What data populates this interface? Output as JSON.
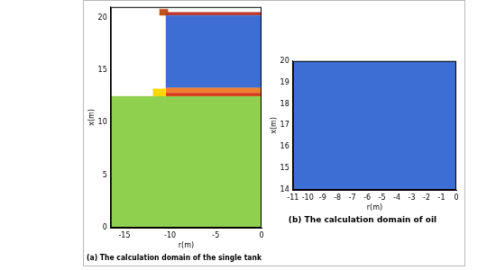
{
  "chart_data": [
    {
      "type": "area",
      "title": "(a) The calculation domain of the single tank",
      "x_label": "r(m)",
      "y_label": "x(m)",
      "xlim": [
        -16.5,
        0
      ],
      "xticks": [
        -15,
        -10,
        -5,
        0
      ],
      "ylim": [
        0,
        21
      ],
      "yticks": [
        0,
        5,
        10,
        15,
        20
      ],
      "grid": false,
      "series": [
        {
          "color": "#8fd14f",
          "x": [
            -16.5,
            0
          ],
          "values": [
            12.5,
            12.5
          ],
          "base": [
            0,
            0
          ]
        },
        {
          "color": "#ffd800",
          "x": [
            -11.9,
            -10.5
          ],
          "values": [
            13.2,
            13.2
          ],
          "base": [
            12.5,
            12.5
          ]
        },
        {
          "color": "#d9381e",
          "x": [
            -10.5,
            0
          ],
          "values": [
            12.8,
            12.8
          ],
          "base": [
            12.5,
            12.5
          ]
        },
        {
          "color": "#f08030",
          "x": [
            -10.5,
            0
          ],
          "values": [
            13.3,
            13.3
          ],
          "base": [
            12.8,
            12.8
          ]
        },
        {
          "color": "#3d6ed3",
          "x": [
            -10.5,
            0
          ],
          "values": [
            20.2,
            20.2
          ],
          "base": [
            13.3,
            13.3
          ]
        },
        {
          "color": "#c0392b",
          "x": [
            -10.5,
            0
          ],
          "values": [
            20.5,
            20.5
          ],
          "base": [
            20.2,
            20.2
          ]
        },
        {
          "color": "#c0531a",
          "x": [
            -11.2,
            -10.2
          ],
          "values": [
            20.8,
            20.8
          ],
          "base": [
            20.2,
            20.2
          ]
        }
      ]
    },
    {
      "type": "area",
      "title": "(b) The calculation domain of oil",
      "x_label": "r(m)",
      "y_label": "x(m)",
      "xlim": [
        -11,
        0
      ],
      "xticks": [
        -11,
        -10,
        -9,
        -8,
        -7,
        -6,
        -5,
        -4,
        -3,
        -2,
        -1,
        0
      ],
      "ylim": [
        14,
        20
      ],
      "yticks": [
        14,
        15,
        16,
        17,
        18,
        19,
        20
      ],
      "grid": false,
      "series": [
        {
          "color": "#3d6ed3",
          "x": [
            -11,
            0
          ],
          "values": [
            20,
            20
          ],
          "base": [
            14,
            14
          ]
        }
      ]
    }
  ]
}
